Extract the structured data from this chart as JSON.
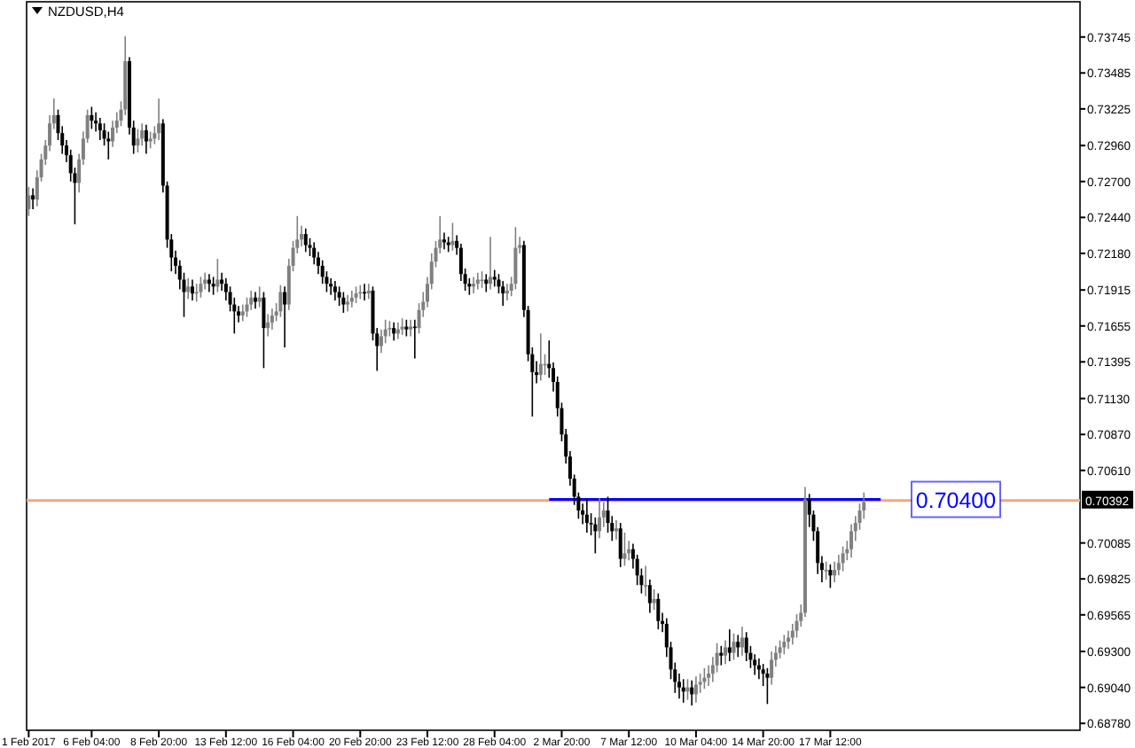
{
  "chart_data": {
    "type": "candlestick",
    "title": "NZDUSD,H4",
    "colors": [
      "#808080",
      "#000000",
      "#808080",
      "#808080",
      "#808080",
      "#808080",
      "#808080",
      "#000000",
      "#000000",
      "#000000",
      "#000000",
      "#000000",
      "#808080",
      "#808080",
      "#808080",
      "#000000",
      "#000000",
      "#000000",
      "#000000",
      "#000000",
      "#808080",
      "#808080",
      "#808080",
      "#808080",
      "#000000",
      "#000000",
      "#808080",
      "#808080",
      "#000000",
      "#808080",
      "#808080",
      "#808080",
      "#000000",
      "#000000",
      "#000000",
      "#000000",
      "#000000",
      "#000000",
      "#808080",
      "#000000",
      "#808080",
      "#808080",
      "#808080",
      "#000000",
      "#000000",
      "#808080",
      "#000000",
      "#000000",
      "#000000",
      "#000000",
      "#000000",
      "#808080",
      "#808080",
      "#808080",
      "#000000",
      "#808080",
      "#000000",
      "#808080",
      "#808080",
      "#808080",
      "#808080",
      "#000000",
      "#808080",
      "#808080",
      "#808080",
      "#808080",
      "#000000",
      "#000000",
      "#000000",
      "#000000",
      "#000000",
      "#000000",
      "#000000",
      "#000000",
      "#000000",
      "#000000",
      "#808080",
      "#808080",
      "#808080",
      "#808080",
      "#000000",
      "#808080",
      "#000000",
      "#000000",
      "#808080",
      "#808080",
      "#808080",
      "#000000",
      "#808080",
      "#808080",
      "#000000",
      "#808080",
      "#000000",
      "#808080",
      "#808080",
      "#808080",
      "#808080",
      "#808080",
      "#808080",
      "#000000",
      "#000000",
      "#808080",
      "#000000",
      "#000000",
      "#000000",
      "#000000",
      "#808080",
      "#808080",
      "#808080",
      "#000000",
      "#808080",
      "#000000",
      "#000000",
      "#000000",
      "#808080",
      "#808080",
      "#808080",
      "#808080",
      "#000000",
      "#000000",
      "#000000",
      "#000000",
      "#808080",
      "#808080",
      "#000000",
      "#000000",
      "#000000",
      "#000000",
      "#000000",
      "#000000",
      "#000000",
      "#000000",
      "#000000",
      "#000000",
      "#000000",
      "#000000",
      "#808080",
      "#808080",
      "#000000",
      "#000000",
      "#808080",
      "#000000",
      "#808080",
      "#808080",
      "#000000",
      "#000000",
      "#000000",
      "#808080",
      "#000000",
      "#808080",
      "#000000",
      "#000000",
      "#000000",
      "#000000",
      "#000000",
      "#000000",
      "#000000",
      "#808080",
      "#000000",
      "#808080",
      "#808080",
      "#808080",
      "#808080",
      "#808080",
      "#808080",
      "#000000",
      "#808080",
      "#000000",
      "#808080",
      "#000000",
      "#808080",
      "#000000",
      "#000000",
      "#000000",
      "#000000",
      "#000000",
      "#000000",
      "#808080",
      "#808080",
      "#808080",
      "#808080",
      "#808080",
      "#808080",
      "#808080",
      "#808080",
      "#808080",
      "#000000",
      "#000000",
      "#000000",
      "#000000",
      "#808080",
      "#000000",
      "#808080",
      "#808080",
      "#808080",
      "#808080",
      "#808080",
      "#808080",
      "#808080",
      "#808080",
      null,
      null,
      null,
      null,
      null,
      null,
      null,
      null,
      null,
      null,
      null,
      null,
      null,
      null,
      null,
      null,
      null,
      null,
      null,
      null,
      null,
      null,
      null,
      null,
      null,
      null,
      null,
      null,
      null,
      null,
      null,
      null,
      null,
      null,
      null,
      null,
      null,
      null,
      null,
      null,
      null,
      null,
      null,
      null,
      null,
      null,
      null,
      null,
      null,
      null,
      null
    ],
    "categories": [
      "1 Feb 2017",
      null,
      null,
      null,
      null,
      null,
      null,
      null,
      null,
      null,
      null,
      null,
      null,
      null,
      null,
      "6 Feb 04:00",
      null,
      null,
      null,
      null,
      null,
      null,
      null,
      null,
      null,
      null,
      null,
      null,
      null,
      null,
      null,
      "8 Feb 20:00",
      null,
      null,
      null,
      null,
      null,
      null,
      null,
      null,
      null,
      null,
      null,
      null,
      null,
      null,
      null,
      "13 Feb 12:00",
      null,
      null,
      null,
      null,
      null,
      null,
      null,
      null,
      null,
      null,
      null,
      null,
      null,
      null,
      null,
      "16 Feb 04:00",
      null,
      null,
      null,
      null,
      null,
      null,
      null,
      null,
      null,
      null,
      null,
      null,
      null,
      null,
      null,
      "20 Feb 20:00",
      null,
      null,
      null,
      null,
      null,
      null,
      null,
      null,
      null,
      null,
      null,
      null,
      null,
      null,
      null,
      "23 Feb 12:00",
      null,
      null,
      null,
      null,
      null,
      null,
      null,
      null,
      null,
      null,
      null,
      null,
      null,
      null,
      null,
      "28 Feb 04:00",
      null,
      null,
      null,
      null,
      null,
      null,
      null,
      null,
      null,
      null,
      null,
      null,
      null,
      null,
      null,
      "2 Mar 20:00",
      null,
      null,
      null,
      null,
      null,
      null,
      null,
      null,
      null,
      null,
      null,
      null,
      null,
      null,
      null,
      "7 Mar 12:00",
      null,
      null,
      null,
      null,
      null,
      null,
      null,
      null,
      null,
      null,
      null,
      null,
      null,
      null,
      null,
      "10 Mar 04:00",
      null,
      null,
      null,
      null,
      null,
      null,
      null,
      null,
      null,
      null,
      null,
      null,
      null,
      null,
      null,
      "14 Mar 20:00",
      null,
      null,
      null,
      null,
      null,
      null,
      null,
      null,
      null,
      null,
      null,
      null,
      null,
      null,
      null,
      "17 Mar 12:00",
      null,
      null,
      null,
      null,
      null,
      null,
      null,
      null,
      null,
      null,
      null,
      null,
      null,
      null,
      null,
      null,
      null,
      null,
      null,
      null,
      null,
      null,
      null,
      null,
      null,
      null,
      null,
      null,
      null,
      null,
      null,
      null,
      null,
      null,
      null,
      null,
      null,
      null,
      null,
      null,
      null,
      null,
      null,
      null,
      null,
      null,
      null,
      null,
      null,
      null,
      null,
      null,
      null,
      null,
      null,
      null,
      null,
      null,
      null
    ],
    "ohlc": [
      [
        0.725,
        0.7266,
        0.7245,
        0.726
      ],
      [
        0.726,
        0.7265,
        0.725,
        0.7257
      ],
      [
        0.7257,
        0.7278,
        0.7252,
        0.7273
      ],
      [
        0.7273,
        0.729,
        0.727,
        0.7286
      ],
      [
        0.7286,
        0.73,
        0.7282,
        0.7296
      ],
      [
        0.7296,
        0.7318,
        0.7292,
        0.7312
      ],
      [
        0.7312,
        0.733,
        0.7308,
        0.7318
      ],
      [
        0.7318,
        0.7322,
        0.73,
        0.7305
      ],
      [
        0.7305,
        0.731,
        0.729,
        0.7296
      ],
      [
        0.7296,
        0.73,
        0.7284,
        0.7289
      ],
      [
        0.7289,
        0.7293,
        0.727,
        0.7276
      ],
      [
        0.7276,
        0.728,
        0.7239,
        0.7269
      ],
      [
        0.7269,
        0.729,
        0.7262,
        0.7286
      ],
      [
        0.7286,
        0.7306,
        0.7282,
        0.7301
      ],
      [
        0.7301,
        0.7322,
        0.7298,
        0.7318
      ],
      [
        0.7318,
        0.7324,
        0.7308,
        0.7314
      ],
      [
        0.7314,
        0.732,
        0.7306,
        0.7312
      ],
      [
        0.7312,
        0.7316,
        0.73,
        0.7307
      ],
      [
        0.7307,
        0.7312,
        0.7296,
        0.7301
      ],
      [
        0.7301,
        0.7306,
        0.7286,
        0.7299
      ],
      [
        0.7299,
        0.7314,
        0.7295,
        0.7309
      ],
      [
        0.7309,
        0.732,
        0.7305,
        0.7314
      ],
      [
        0.7314,
        0.7328,
        0.731,
        0.7322
      ],
      [
        0.7322,
        0.7375,
        0.7318,
        0.7357
      ],
      [
        0.7357,
        0.736,
        0.7304,
        0.7309
      ],
      [
        0.7309,
        0.7314,
        0.729,
        0.7296
      ],
      [
        0.7296,
        0.7308,
        0.7291,
        0.7301
      ],
      [
        0.7301,
        0.7312,
        0.7296,
        0.7307
      ],
      [
        0.7307,
        0.7311,
        0.729,
        0.7299
      ],
      [
        0.7299,
        0.7306,
        0.7294,
        0.7301
      ],
      [
        0.7301,
        0.731,
        0.7297,
        0.7305
      ],
      [
        0.7305,
        0.733,
        0.73,
        0.7312
      ],
      [
        0.7312,
        0.7315,
        0.7262,
        0.7267
      ],
      [
        0.7267,
        0.727,
        0.7222,
        0.7228
      ],
      [
        0.7228,
        0.7232,
        0.7205,
        0.7215
      ],
      [
        0.7215,
        0.722,
        0.7203,
        0.7209
      ],
      [
        0.7209,
        0.7213,
        0.7192,
        0.7199
      ],
      [
        0.7199,
        0.7204,
        0.7172,
        0.719
      ],
      [
        0.719,
        0.72,
        0.7185,
        0.7194
      ],
      [
        0.7194,
        0.7199,
        0.7184,
        0.7189
      ],
      [
        0.7189,
        0.7196,
        0.7183,
        0.719
      ],
      [
        0.719,
        0.7201,
        0.7186,
        0.7196
      ],
      [
        0.7196,
        0.7204,
        0.7192,
        0.7199
      ],
      [
        0.7199,
        0.7203,
        0.719,
        0.7196
      ],
      [
        0.7196,
        0.7201,
        0.7188,
        0.7194
      ],
      [
        0.7194,
        0.7214,
        0.719,
        0.7199
      ],
      [
        0.7199,
        0.7204,
        0.7191,
        0.7196
      ],
      [
        0.7196,
        0.72,
        0.7184,
        0.719
      ],
      [
        0.719,
        0.7194,
        0.7176,
        0.7181
      ],
      [
        0.7181,
        0.7186,
        0.716,
        0.7176
      ],
      [
        0.7176,
        0.718,
        0.7168,
        0.7173
      ],
      [
        0.7173,
        0.7181,
        0.7169,
        0.7176
      ],
      [
        0.7176,
        0.7186,
        0.7172,
        0.7181
      ],
      [
        0.7181,
        0.7191,
        0.7177,
        0.7186
      ],
      [
        0.7186,
        0.719,
        0.7178,
        0.7183
      ],
      [
        0.7183,
        0.7194,
        0.7179,
        0.7186
      ],
      [
        0.7186,
        0.719,
        0.7135,
        0.7164
      ],
      [
        0.7164,
        0.7174,
        0.7158,
        0.7168
      ],
      [
        0.7168,
        0.7178,
        0.7163,
        0.7173
      ],
      [
        0.7173,
        0.7182,
        0.7169,
        0.7176
      ],
      [
        0.7176,
        0.7195,
        0.7172,
        0.719
      ],
      [
        0.719,
        0.7194,
        0.715,
        0.7181
      ],
      [
        0.7181,
        0.7214,
        0.7177,
        0.7209
      ],
      [
        0.7209,
        0.7227,
        0.7205,
        0.7222
      ],
      [
        0.7222,
        0.7245,
        0.7218,
        0.7228
      ],
      [
        0.7228,
        0.7238,
        0.7223,
        0.7232
      ],
      [
        0.7232,
        0.7236,
        0.7219,
        0.7224
      ],
      [
        0.7224,
        0.7229,
        0.7216,
        0.7222
      ],
      [
        0.7222,
        0.7226,
        0.721,
        0.7215
      ],
      [
        0.7215,
        0.7219,
        0.7203,
        0.7209
      ],
      [
        0.7209,
        0.7213,
        0.7196,
        0.7201
      ],
      [
        0.7201,
        0.7205,
        0.719,
        0.7196
      ],
      [
        0.7196,
        0.72,
        0.7188,
        0.7194
      ],
      [
        0.7194,
        0.7198,
        0.7184,
        0.719
      ],
      [
        0.719,
        0.7194,
        0.718,
        0.7186
      ],
      [
        0.7186,
        0.719,
        0.7175,
        0.7181
      ],
      [
        0.7181,
        0.7188,
        0.7176,
        0.7183
      ],
      [
        0.7183,
        0.7191,
        0.7179,
        0.7186
      ],
      [
        0.7186,
        0.7194,
        0.7182,
        0.7189
      ],
      [
        0.7189,
        0.7195,
        0.7185,
        0.719
      ],
      [
        0.719,
        0.7196,
        0.7184,
        0.7189
      ],
      [
        0.7189,
        0.7196,
        0.7185,
        0.7191
      ],
      [
        0.7191,
        0.7194,
        0.7155,
        0.716
      ],
      [
        0.716,
        0.7164,
        0.7133,
        0.7151
      ],
      [
        0.7151,
        0.7163,
        0.7146,
        0.7158
      ],
      [
        0.7158,
        0.717,
        0.7153,
        0.7163
      ],
      [
        0.7163,
        0.7169,
        0.7158,
        0.7164
      ],
      [
        0.7164,
        0.7168,
        0.7155,
        0.716
      ],
      [
        0.716,
        0.7168,
        0.7156,
        0.7163
      ],
      [
        0.7163,
        0.7171,
        0.7159,
        0.7165
      ],
      [
        0.7165,
        0.717,
        0.7158,
        0.7163
      ],
      [
        0.7163,
        0.717,
        0.7158,
        0.7165
      ],
      [
        0.7165,
        0.717,
        0.7142,
        0.7164
      ],
      [
        0.7164,
        0.7182,
        0.716,
        0.7177
      ],
      [
        0.7177,
        0.719,
        0.7172,
        0.7183
      ],
      [
        0.7183,
        0.7201,
        0.7179,
        0.7196
      ],
      [
        0.7196,
        0.7218,
        0.7192,
        0.7212
      ],
      [
        0.7212,
        0.7227,
        0.7208,
        0.7222
      ],
      [
        0.7222,
        0.7245,
        0.7218,
        0.7228
      ],
      [
        0.7228,
        0.7233,
        0.7221,
        0.7226
      ],
      [
        0.7226,
        0.723,
        0.7219,
        0.7224
      ],
      [
        0.7224,
        0.724,
        0.722,
        0.7227
      ],
      [
        0.7227,
        0.7231,
        0.7217,
        0.7222
      ],
      [
        0.7222,
        0.7225,
        0.7198,
        0.7203
      ],
      [
        0.7203,
        0.7207,
        0.7191,
        0.7196
      ],
      [
        0.7196,
        0.72,
        0.7188,
        0.7194
      ],
      [
        0.7194,
        0.7201,
        0.7189,
        0.7196
      ],
      [
        0.7196,
        0.7204,
        0.7192,
        0.7199
      ],
      [
        0.7199,
        0.7205,
        0.7193,
        0.7199
      ],
      [
        0.7199,
        0.7203,
        0.719,
        0.7196
      ],
      [
        0.7196,
        0.723,
        0.7192,
        0.7201
      ],
      [
        0.7201,
        0.7206,
        0.7194,
        0.7199
      ],
      [
        0.7199,
        0.7203,
        0.7189,
        0.7194
      ],
      [
        0.7194,
        0.7198,
        0.718,
        0.7189
      ],
      [
        0.7189,
        0.7196,
        0.7184,
        0.7191
      ],
      [
        0.7191,
        0.7201,
        0.7187,
        0.7196
      ],
      [
        0.7196,
        0.7237,
        0.7192,
        0.7222
      ],
      [
        0.7222,
        0.723,
        0.7218,
        0.7224
      ],
      [
        0.7224,
        0.7227,
        0.7172,
        0.7177
      ],
      [
        0.7177,
        0.718,
        0.714,
        0.7145
      ],
      [
        0.7145,
        0.715,
        0.71,
        0.7132
      ],
      [
        0.7132,
        0.714,
        0.7124,
        0.713
      ],
      [
        0.713,
        0.716,
        0.7126,
        0.7138
      ],
      [
        0.7138,
        0.7145,
        0.713,
        0.7138
      ],
      [
        0.7138,
        0.7155,
        0.7128,
        0.7135
      ],
      [
        0.7135,
        0.7139,
        0.7118,
        0.7125
      ],
      [
        0.7125,
        0.7129,
        0.71,
        0.7106
      ],
      [
        0.7106,
        0.711,
        0.7082,
        0.7087
      ],
      [
        0.7087,
        0.7091,
        0.7066,
        0.7071
      ],
      [
        0.7071,
        0.7075,
        0.705,
        0.7055
      ],
      [
        0.7055,
        0.7058,
        0.7036,
        0.7042
      ],
      [
        0.7042,
        0.7045,
        0.7026,
        0.7032
      ],
      [
        0.7032,
        0.7037,
        0.7022,
        0.7029
      ],
      [
        0.7029,
        0.704,
        0.7016,
        0.7023
      ],
      [
        0.7023,
        0.703,
        0.7014,
        0.7022
      ],
      [
        0.7022,
        0.7027,
        0.7001,
        0.7017
      ],
      [
        0.7017,
        0.7041,
        0.7012,
        0.7027
      ],
      [
        0.7027,
        0.7038,
        0.702,
        0.7032
      ],
      [
        0.7032,
        0.7042,
        0.7016,
        0.7023
      ],
      [
        0.7023,
        0.7028,
        0.701,
        0.7017
      ],
      [
        0.7017,
        0.7025,
        0.7011,
        0.7019
      ],
      [
        0.7019,
        0.7023,
        0.6991,
        0.6997
      ],
      [
        0.6997,
        0.7016,
        0.6992,
        0.7001
      ],
      [
        0.7001,
        0.701,
        0.6996,
        0.7004
      ],
      [
        0.7004,
        0.7008,
        0.699,
        0.6997
      ],
      [
        0.6997,
        0.7,
        0.6978,
        0.6985
      ],
      [
        0.6985,
        0.699,
        0.6972,
        0.6978
      ],
      [
        0.6978,
        0.6992,
        0.697,
        0.6978
      ],
      [
        0.6978,
        0.6982,
        0.6958,
        0.6965
      ],
      [
        0.6965,
        0.6975,
        0.696,
        0.6968
      ],
      [
        0.6968,
        0.6972,
        0.6946,
        0.6952
      ],
      [
        0.6952,
        0.6958,
        0.6944,
        0.695
      ],
      [
        0.695,
        0.6954,
        0.6926,
        0.6933
      ],
      [
        0.6933,
        0.6937,
        0.691,
        0.6917
      ],
      [
        0.6917,
        0.6922,
        0.69,
        0.6908
      ],
      [
        0.6908,
        0.6914,
        0.6896,
        0.6904
      ],
      [
        0.6904,
        0.691,
        0.6893,
        0.6901
      ],
      [
        0.6901,
        0.691,
        0.6895,
        0.6904
      ],
      [
        0.6904,
        0.6909,
        0.6891,
        0.6899
      ],
      [
        0.6899,
        0.6912,
        0.6893,
        0.6906
      ],
      [
        0.6906,
        0.6914,
        0.69,
        0.6908
      ],
      [
        0.6908,
        0.6918,
        0.6903,
        0.6911
      ],
      [
        0.6911,
        0.692,
        0.6905,
        0.6914
      ],
      [
        0.6914,
        0.6926,
        0.6908,
        0.692
      ],
      [
        0.692,
        0.6936,
        0.6915,
        0.6929
      ],
      [
        0.6929,
        0.6934,
        0.692,
        0.6927
      ],
      [
        0.6927,
        0.6938,
        0.6921,
        0.6933
      ],
      [
        0.6933,
        0.6946,
        0.6923,
        0.6929
      ],
      [
        0.6929,
        0.6943,
        0.6924,
        0.6937
      ],
      [
        0.6937,
        0.6942,
        0.6926,
        0.6933
      ],
      [
        0.6933,
        0.6948,
        0.6927,
        0.694
      ],
      [
        0.694,
        0.6944,
        0.6923,
        0.6929
      ],
      [
        0.6929,
        0.6934,
        0.6918,
        0.6924
      ],
      [
        0.6924,
        0.6928,
        0.6913,
        0.692
      ],
      [
        0.692,
        0.6925,
        0.691,
        0.6917
      ],
      [
        0.6917,
        0.6921,
        0.6905,
        0.6914
      ],
      [
        0.6914,
        0.6918,
        0.6892,
        0.6911
      ],
      [
        0.6911,
        0.693,
        0.6906,
        0.6924
      ],
      [
        0.6924,
        0.6934,
        0.6919,
        0.6929
      ],
      [
        0.6929,
        0.6938,
        0.6925,
        0.6933
      ],
      [
        0.6933,
        0.6942,
        0.6928,
        0.6937
      ],
      [
        0.6937,
        0.6945,
        0.6932,
        0.694
      ],
      [
        0.694,
        0.695,
        0.6935,
        0.6945
      ],
      [
        0.6945,
        0.6957,
        0.694,
        0.6952
      ],
      [
        0.6952,
        0.6964,
        0.6948,
        0.6958
      ],
      [
        0.6958,
        0.7049,
        0.6955,
        0.704
      ],
      [
        0.704,
        0.7044,
        0.702,
        0.7029
      ],
      [
        0.7029,
        0.7032,
        0.701,
        0.7017
      ],
      [
        0.7017,
        0.702,
        0.6986,
        0.6994
      ],
      [
        0.6994,
        0.6999,
        0.698,
        0.6989
      ],
      [
        0.6989,
        0.6995,
        0.6982,
        0.6989
      ],
      [
        0.6989,
        0.6993,
        0.6976,
        0.6985
      ],
      [
        0.6985,
        0.6995,
        0.698,
        0.6989
      ],
      [
        0.6989,
        0.7,
        0.6985,
        0.6994
      ],
      [
        0.6994,
        0.7006,
        0.6988,
        0.7001
      ],
      [
        0.7001,
        0.701,
        0.6996,
        0.7004
      ],
      [
        0.7004,
        0.7022,
        0.6998,
        0.7017
      ],
      [
        0.7017,
        0.7028,
        0.701,
        0.7023
      ],
      [
        0.7023,
        0.7037,
        0.7018,
        0.7032
      ],
      [
        0.7032,
        0.7045,
        0.7026,
        0.7038
      ],
      null,
      null,
      null,
      null,
      null,
      null,
      null,
      null,
      null,
      null,
      null,
      null,
      null,
      null,
      null,
      null,
      null,
      null,
      null,
      null,
      null,
      null,
      null,
      null,
      null,
      null,
      null,
      null,
      null,
      null,
      null,
      null,
      null,
      null,
      null,
      null,
      null,
      null,
      null,
      null,
      null,
      null,
      null,
      null,
      null,
      null,
      null,
      null,
      null,
      null,
      null
    ],
    "ylim": [
      0.6873,
      0.74
    ],
    "yticks": [
      0.73745,
      0.73485,
      0.73225,
      {
        "value": 0.7296,
        "label": "0.72960"
      },
      {
        "value": 0.727,
        "label": "0.72700"
      },
      {
        "value": 0.7244,
        "label": "0.72440"
      },
      {
        "value": 0.7218,
        "label": "0.72180"
      },
      0.71915,
      0.71655,
      0.71395,
      {
        "value": 0.7113,
        "label": "0.71130"
      },
      {
        "value": 0.7087,
        "label": "0.70870"
      },
      {
        "value": 0.7061,
        "label": "0.70610"
      },
      0.70085,
      0.69825,
      0.69565,
      {
        "value": 0.693,
        "label": "0.69300"
      },
      {
        "value": 0.6904,
        "label": "0.69040"
      },
      {
        "value": 0.6878,
        "label": "0.68780"
      }
    ],
    "ref_lines": [
      {
        "axis": "y",
        "value": 0.70392,
        "label": "0.70392",
        "color": "#f4a582"
      },
      {
        "axis": "y",
        "value": 0.704,
        "label": "0.70400",
        "color": "#0000ff"
      }
    ]
  }
}
